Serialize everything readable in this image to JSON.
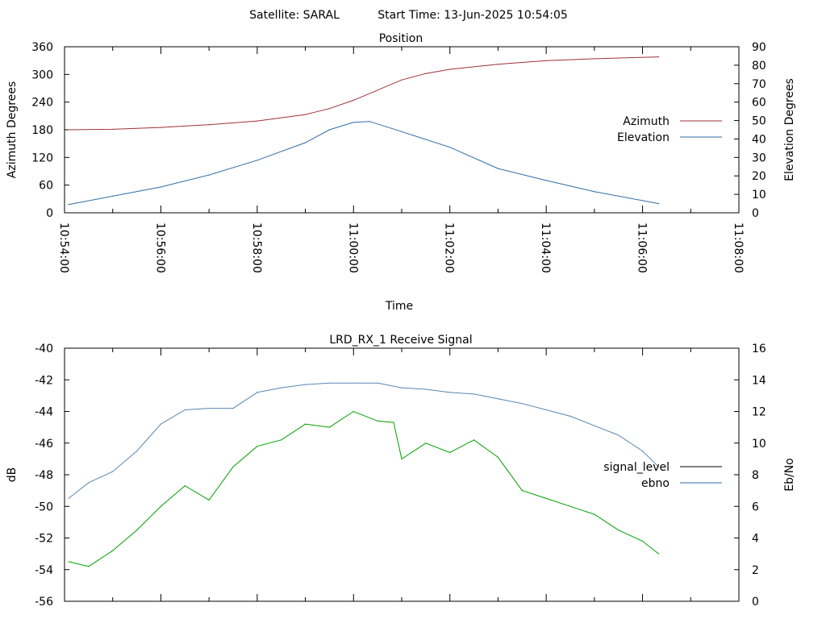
{
  "header": {
    "satellite": "Satellite: SARAL",
    "start_time": "Start Time: 13-Jun-2025 10:54:05"
  },
  "colors": {
    "azimuth": "#a0303a",
    "elevation": "#2f6ea8",
    "signal_level": "#000000",
    "ebno_line": "#2f6ea8",
    "ebno_trace": "#00a000",
    "signal_trace": "#5a86b4"
  },
  "chart_data": [
    {
      "type": "line",
      "title": "Position",
      "xlabel": "Time",
      "ylabel": "Azimuth Degrees",
      "y2label": "Elevation Degrees",
      "xlim": [
        "10:54:00",
        "11:08:00"
      ],
      "x_ticks": [
        "10:54:00",
        "10:56:00",
        "10:58:00",
        "11:00:00",
        "11:02:00",
        "11:04:00",
        "11:06:00",
        "11:08:00"
      ],
      "ylim": [
        0,
        360
      ],
      "y_ticks": [
        "0",
        "60",
        "120",
        "180",
        "240",
        "300",
        "360"
      ],
      "y2lim": [
        0,
        90
      ],
      "y2_ticks": [
        "0",
        "10",
        "20",
        "30",
        "40",
        "50",
        "60",
        "70",
        "80",
        "90"
      ],
      "legend_position": "right",
      "series": [
        {
          "name": "Azimuth",
          "axis": "y",
          "x": [
            "10:54:05",
            "10:55:00",
            "10:56:00",
            "10:57:00",
            "10:58:00",
            "10:59:00",
            "10:59:30",
            "11:00:00",
            "11:00:30",
            "11:01:00",
            "11:01:30",
            "11:02:00",
            "11:03:00",
            "11:04:00",
            "11:05:00",
            "11:06:20"
          ],
          "values": [
            180,
            181,
            185,
            191,
            199,
            213,
            226,
            244,
            266,
            288,
            302,
            311,
            322,
            330,
            334,
            338
          ]
        },
        {
          "name": "Elevation",
          "axis": "y2",
          "x": [
            "10:54:05",
            "10:55:00",
            "10:56:00",
            "10:57:00",
            "10:58:00",
            "10:59:00",
            "10:59:30",
            "11:00:00",
            "11:00:20",
            "11:01:00",
            "11:02:00",
            "11:03:00",
            "11:04:00",
            "11:05:00",
            "11:06:20"
          ],
          "values": [
            4.5,
            9,
            14,
            20.5,
            28.5,
            38,
            45,
            49,
            49.5,
            44,
            35.5,
            24,
            17.5,
            11.5,
            5
          ]
        }
      ]
    },
    {
      "type": "line",
      "title": "LRD_RX_1 Receive Signal",
      "xlabel": "",
      "ylabel": "dB",
      "y2label": "Eb/No",
      "xlim": [
        "10:54:00",
        "11:08:00"
      ],
      "ylim": [
        -56,
        -40
      ],
      "y_ticks": [
        "-40",
        "-42",
        "-44",
        "-46",
        "-48",
        "-50",
        "-52",
        "-54",
        "-56"
      ],
      "y2lim": [
        0,
        16
      ],
      "y2_ticks": [
        "0",
        "2",
        "4",
        "6",
        "8",
        "10",
        "12",
        "14",
        "16"
      ],
      "legend_position": "right",
      "series": [
        {
          "name": "signal_level",
          "axis": "y",
          "x": [],
          "values": []
        },
        {
          "name": "ebno",
          "axis": "y2",
          "x": [],
          "values": []
        },
        {
          "axis": "y2",
          "note_color": "green",
          "x": [
            "10:54:05",
            "10:54:30",
            "10:55:00",
            "10:55:30",
            "10:56:00",
            "10:56:30",
            "10:57:00",
            "10:57:30",
            "10:58:00",
            "10:58:30",
            "10:59:00",
            "10:59:30",
            "11:00:00",
            "11:00:30",
            "11:00:50",
            "11:01:00",
            "11:01:30",
            "11:02:00",
            "11:02:30",
            "11:03:00",
            "11:03:30",
            "11:04:00",
            "11:04:30",
            "11:05:00",
            "11:05:30",
            "11:06:00",
            "11:06:20"
          ],
          "values": [
            2.5,
            2.2,
            3.2,
            4.5,
            6.0,
            7.3,
            6.4,
            8.5,
            9.8,
            10.2,
            11.2,
            11.0,
            12.0,
            11.4,
            11.3,
            9.0,
            10.0,
            9.4,
            10.2,
            9.1,
            7.0,
            6.5,
            6.0,
            5.5,
            4.5,
            3.8,
            3.0
          ]
        },
        {
          "axis": "y",
          "note_color": "steelblue",
          "x": [
            "10:54:05",
            "10:54:30",
            "10:55:00",
            "10:55:30",
            "10:56:00",
            "10:56:30",
            "10:57:00",
            "10:57:30",
            "10:58:00",
            "10:58:30",
            "10:59:00",
            "10:59:30",
            "11:00:00",
            "11:00:30",
            "11:01:00",
            "11:01:30",
            "11:02:00",
            "11:02:30",
            "11:03:00",
            "11:03:30",
            "11:04:00",
            "11:04:30",
            "11:05:00",
            "11:05:30",
            "11:06:00",
            "11:06:20"
          ],
          "values": [
            -49.5,
            -48.5,
            -47.8,
            -46.5,
            -44.8,
            -43.9,
            -43.8,
            -43.8,
            -42.8,
            -42.5,
            -42.3,
            -42.2,
            -42.2,
            -42.2,
            -42.5,
            -42.6,
            -42.8,
            -42.9,
            -43.2,
            -43.5,
            -43.9,
            -44.3,
            -44.9,
            -45.5,
            -46.5,
            -47.5
          ]
        }
      ]
    }
  ]
}
